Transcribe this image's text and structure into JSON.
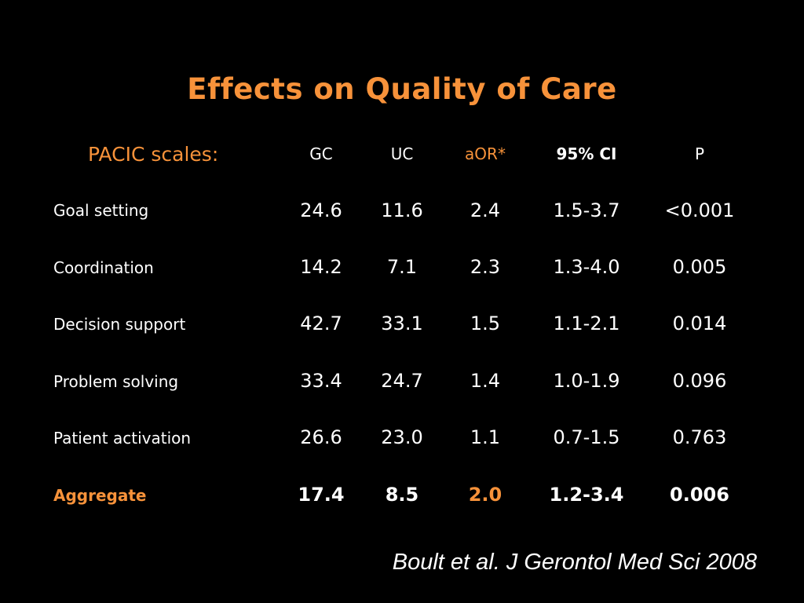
{
  "slide": {
    "title": "Effects on Quality of Care",
    "citation": "Boult et al. J Gerontol Med Sci 2008"
  },
  "table": {
    "label_header": "PACIC scales:",
    "columns": [
      "GC",
      "UC",
      "aOR*",
      "95% CI",
      "P"
    ],
    "rows": [
      {
        "label": "Goal setting",
        "gc": "24.6",
        "uc": "11.6",
        "aor": "2.4",
        "ci": "1.5-3.7",
        "p": "<0.001"
      },
      {
        "label": "Coordination",
        "gc": "14.2",
        "uc": "7.1",
        "aor": "2.3",
        "ci": "1.3-4.0",
        "p": "0.005"
      },
      {
        "label": "Decision support",
        "gc": "42.7",
        "uc": "33.1",
        "aor": "1.5",
        "ci": "1.1-2.1",
        "p": "0.014"
      },
      {
        "label": "Problem solving",
        "gc": "33.4",
        "uc": "24.7",
        "aor": "1.4",
        "ci": "1.0-1.9",
        "p": "0.096"
      },
      {
        "label": "Patient activation",
        "gc": "26.6",
        "uc": "23.0",
        "aor": "1.1",
        "ci": "0.7-1.5",
        "p": "0.763"
      },
      {
        "label": "Aggregate",
        "gc": "17.4",
        "uc": "8.5",
        "aor": "2.0",
        "ci": "1.2-3.4",
        "p": "0.006"
      }
    ]
  },
  "colors": {
    "background": "#000000",
    "accent": "#f7923a",
    "text": "#ffffff"
  }
}
